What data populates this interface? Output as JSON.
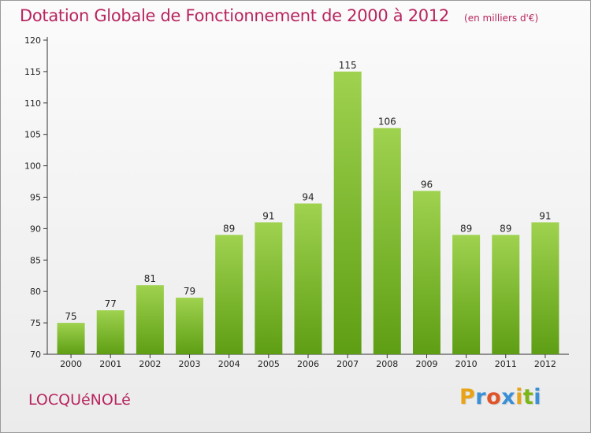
{
  "header": {
    "title": "Dotation Globale de Fonctionnement de 2000 à 2012",
    "subtitle": "(en milliers d'€)"
  },
  "footer": {
    "commune": "LOCQUéNOLé",
    "brand_letters": [
      {
        "char": "P",
        "color": "#e8a317"
      },
      {
        "char": "r",
        "color": "#3a8fd6"
      },
      {
        "char": "o",
        "color": "#e0542a"
      },
      {
        "char": "x",
        "color": "#3a8fd6"
      },
      {
        "char": "i",
        "color": "#e8a317"
      },
      {
        "char": "t",
        "color": "#7cb518"
      },
      {
        "char": "i",
        "color": "#3a8fd6"
      }
    ]
  },
  "colors": {
    "accent": "#b8255f",
    "bar_top": "#9fd24f",
    "bar_bottom": "#5e9e14"
  },
  "chart_data": {
    "type": "bar",
    "categories": [
      "2000",
      "2001",
      "2002",
      "2003",
      "2004",
      "2005",
      "2006",
      "2007",
      "2008",
      "2009",
      "2010",
      "2011",
      "2012"
    ],
    "values": [
      75,
      77,
      81,
      79,
      89,
      91,
      94,
      115,
      106,
      96,
      89,
      89,
      91
    ],
    "ylim": [
      70,
      120
    ],
    "yticks": [
      70,
      75,
      80,
      85,
      90,
      95,
      100,
      105,
      110,
      115,
      120
    ],
    "grid": false,
    "data_labels": true
  }
}
